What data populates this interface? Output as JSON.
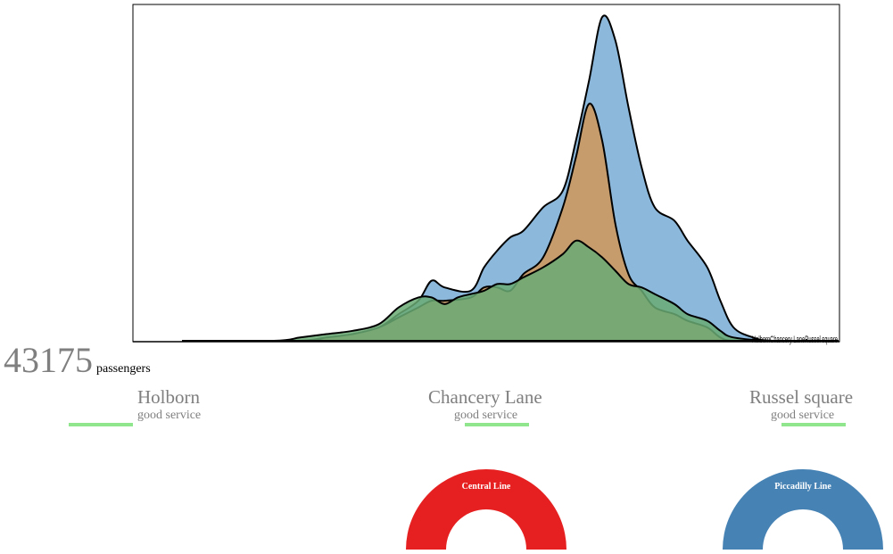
{
  "chart_data": {
    "type": "area",
    "title": "",
    "xlabel": "",
    "ylabel": "",
    "legend_text": "HolbornChancery LaneRussel square",
    "series": [
      {
        "name": "Holborn",
        "color": "#8cb8dc",
        "x": [
          0.0,
          0.1,
          0.18,
          0.22,
          0.26,
          0.3,
          0.33,
          0.36,
          0.38,
          0.4,
          0.44,
          0.46,
          0.48,
          0.5,
          0.52,
          0.55,
          0.58,
          0.6,
          0.62,
          0.64,
          0.66,
          0.68,
          0.7,
          0.72,
          0.75,
          0.77,
          0.8,
          0.82,
          0.84,
          0.87,
          0.9,
          1.0
        ],
        "values": [
          0,
          0,
          0,
          0.01,
          0.02,
          0.04,
          0.08,
          0.12,
          0.18,
          0.16,
          0.15,
          0.22,
          0.27,
          0.31,
          0.33,
          0.4,
          0.45,
          0.6,
          0.78,
          0.97,
          0.9,
          0.7,
          0.52,
          0.4,
          0.36,
          0.3,
          0.22,
          0.12,
          0.04,
          0.01,
          0,
          0
        ]
      },
      {
        "name": "Chancery Lane",
        "color": "#c69c6d",
        "x": [
          0.0,
          0.18,
          0.22,
          0.26,
          0.3,
          0.33,
          0.36,
          0.38,
          0.4,
          0.44,
          0.46,
          0.48,
          0.5,
          0.52,
          0.55,
          0.58,
          0.6,
          0.62,
          0.64,
          0.66,
          0.68,
          0.7,
          0.72,
          0.75,
          0.77,
          0.8,
          0.82,
          0.84,
          0.9,
          1.0
        ],
        "values": [
          0,
          0,
          0.01,
          0.02,
          0.04,
          0.07,
          0.1,
          0.12,
          0.12,
          0.13,
          0.16,
          0.16,
          0.15,
          0.2,
          0.25,
          0.4,
          0.55,
          0.71,
          0.6,
          0.35,
          0.2,
          0.15,
          0.1,
          0.08,
          0.06,
          0.04,
          0.01,
          0,
          0,
          0
        ]
      },
      {
        "name": "Russel square",
        "color": "#6aaa74",
        "x": [
          0.0,
          0.14,
          0.18,
          0.22,
          0.26,
          0.3,
          0.33,
          0.36,
          0.38,
          0.4,
          0.42,
          0.44,
          0.46,
          0.48,
          0.5,
          0.52,
          0.55,
          0.58,
          0.6,
          0.62,
          0.64,
          0.66,
          0.68,
          0.7,
          0.72,
          0.75,
          0.77,
          0.8,
          0.82,
          0.84,
          0.9,
          1.0
        ],
        "values": [
          0,
          0,
          0.01,
          0.02,
          0.03,
          0.05,
          0.1,
          0.13,
          0.13,
          0.11,
          0.13,
          0.14,
          0.15,
          0.17,
          0.17,
          0.19,
          0.22,
          0.26,
          0.3,
          0.28,
          0.25,
          0.21,
          0.17,
          0.16,
          0.14,
          0.11,
          0.08,
          0.06,
          0.03,
          0.01,
          0,
          0
        ]
      }
    ],
    "ylim": [
      0,
      1.0
    ],
    "grid": false
  },
  "summary": {
    "count": "43175",
    "unit": "passengers"
  },
  "stations": [
    {
      "name": "Holborn",
      "status": "good service",
      "status_color": "#90e68c"
    },
    {
      "name": "Chancery Lane",
      "status": "good service",
      "status_color": "#90e68c"
    },
    {
      "name": "Russel square",
      "status": "good service",
      "status_color": "#90e68c"
    }
  ],
  "lines": [
    {
      "name": "Central Line",
      "color": "#e62020",
      "level": 1.0
    },
    {
      "name": "Piccadilly Line",
      "color": "#4682b4",
      "level": 1.0
    }
  ]
}
